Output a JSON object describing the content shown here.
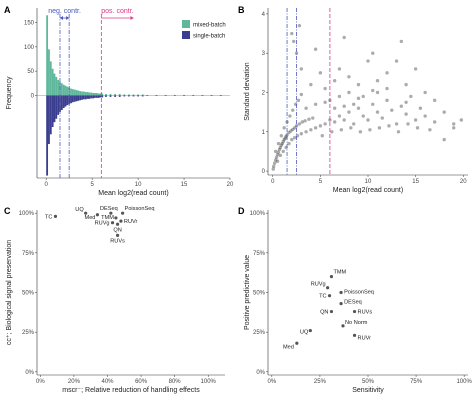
{
  "panels": {
    "A": "A",
    "B": "B",
    "C": "C",
    "D": "D"
  },
  "chart_data": [
    {
      "panel": "A",
      "type": "bar",
      "xlabel": "Mean log2(read count)",
      "ylabel": "Frequency",
      "xlim": [
        -1,
        20
      ],
      "ylim": [
        -170,
        180
      ],
      "yticks": [
        "0",
        "50",
        "100",
        "150"
      ],
      "xticks": [
        0,
        5,
        10,
        15,
        20
      ],
      "legend": [
        "mixed-batch",
        "single-batch"
      ],
      "legend_position": "top-right",
      "colors": {
        "mixed-batch": "#5fb89b",
        "single-batch": "#3b3d8e",
        "neg": "#4a56c0",
        "pos": "#e0358a"
      },
      "annotations": [
        {
          "text": "neg. contr.",
          "range": [
            1.5,
            2.5
          ],
          "color": "neg"
        },
        {
          "text": "pos. contr.",
          "range": [
            6.0,
            9.5
          ],
          "color": "pos"
        }
      ],
      "vlines": [
        {
          "x": 1.5,
          "color": "neg",
          "style": "dotdash"
        },
        {
          "x": 2.5,
          "color": "neg",
          "style": "dotdash"
        },
        {
          "x": 6.0,
          "color": "pos",
          "style": "dash"
        }
      ],
      "series": [
        {
          "name": "mixed-batch",
          "x": [
            0.1,
            0.3,
            0.5,
            0.7,
            0.9,
            1.1,
            1.3,
            1.5,
            1.7,
            1.9,
            2.1,
            2.3,
            2.5,
            2.7,
            2.9,
            3.1,
            3.3,
            3.5,
            3.7,
            3.9,
            4.1,
            4.3,
            4.5,
            4.7,
            4.9,
            5.1,
            5.3,
            5.5,
            5.7,
            5.9,
            6.1,
            6.5,
            7,
            7.5,
            8,
            8.5,
            9,
            9.5,
            10,
            10.5,
            11,
            12,
            13,
            14,
            15,
            16,
            17,
            18,
            19
          ],
          "values": [
            165,
            95,
            70,
            55,
            45,
            38,
            32,
            28,
            25,
            22,
            20,
            18,
            16,
            14,
            13,
            12,
            11,
            10,
            9,
            8,
            8,
            7,
            7,
            6,
            6,
            5,
            5,
            5,
            4,
            4,
            4,
            3,
            3,
            3,
            3,
            2,
            2,
            2,
            2,
            2,
            1,
            1,
            1,
            1,
            1,
            1,
            1,
            1,
            1
          ]
        },
        {
          "name": "single-batch",
          "x": [
            0.1,
            0.3,
            0.5,
            0.7,
            0.9,
            1.1,
            1.3,
            1.5,
            1.7,
            1.9,
            2.1,
            2.3,
            2.5,
            2.7,
            2.9,
            3.1,
            3.3,
            3.5,
            3.7,
            3.9,
            4.1,
            4.3,
            4.5,
            4.7,
            4.9,
            5.1,
            5.3,
            5.5,
            5.7,
            5.9,
            6.1,
            6.5,
            7,
            7.5,
            8,
            8.5,
            9,
            9.5,
            10,
            10.5,
            11,
            12,
            13,
            14,
            15,
            16,
            17,
            18,
            19
          ],
          "values": [
            165,
            100,
            80,
            65,
            55,
            48,
            40,
            34,
            30,
            26,
            23,
            20,
            18,
            16,
            14,
            13,
            12,
            11,
            10,
            9,
            8,
            8,
            7,
            7,
            6,
            6,
            5,
            5,
            5,
            4,
            4,
            3,
            3,
            3,
            3,
            2,
            2,
            2,
            2,
            2,
            1,
            1,
            1,
            1,
            1,
            1,
            1,
            1,
            1
          ]
        }
      ]
    },
    {
      "panel": "B",
      "type": "scatter",
      "xlabel": "Mean log2(read count)",
      "ylabel": "Standard deviation",
      "xlim": [
        -0.5,
        20.5
      ],
      "ylim": [
        -0.1,
        4.15
      ],
      "xticks": [
        0,
        5,
        10,
        15,
        20
      ],
      "yticks": [
        0,
        1,
        2,
        3,
        4
      ],
      "vlines": [
        {
          "x": 1.5,
          "color": "neg",
          "style": "dotdash"
        },
        {
          "x": 2.5,
          "color": "neg",
          "style": "dotdash"
        },
        {
          "x": 6.0,
          "color": "pos",
          "style": "dash"
        }
      ],
      "colors": {
        "neg": "#4a56c0",
        "pos": "#e0358a",
        "point": "#111111"
      },
      "points": [
        [
          0.05,
          0.05
        ],
        [
          0.1,
          0.12
        ],
        [
          0.2,
          0.2
        ],
        [
          0.3,
          0.28
        ],
        [
          0.4,
          0.35
        ],
        [
          0.5,
          0.42
        ],
        [
          0.6,
          0.48
        ],
        [
          0.7,
          0.55
        ],
        [
          0.8,
          0.6
        ],
        [
          0.9,
          0.66
        ],
        [
          1.0,
          0.7
        ],
        [
          1.1,
          0.75
        ],
        [
          1.2,
          0.8
        ],
        [
          1.3,
          0.84
        ],
        [
          1.4,
          0.88
        ],
        [
          1.5,
          0.92
        ],
        [
          1.7,
          0.98
        ],
        [
          1.9,
          1.02
        ],
        [
          2.1,
          1.06
        ],
        [
          2.3,
          1.1
        ],
        [
          2.5,
          1.15
        ],
        [
          2.8,
          1.2
        ],
        [
          3.1,
          1.25
        ],
        [
          3.4,
          1.28
        ],
        [
          3.8,
          1.32
        ],
        [
          4.2,
          1.35
        ],
        [
          0.3,
          0.5
        ],
        [
          0.6,
          0.7
        ],
        [
          0.9,
          0.9
        ],
        [
          1.2,
          1.1
        ],
        [
          1.5,
          1.25
        ],
        [
          1.8,
          1.4
        ],
        [
          2.1,
          1.55
        ],
        [
          2.4,
          1.7
        ],
        [
          2.7,
          1.8
        ],
        [
          3.0,
          1.95
        ],
        [
          0.5,
          0.25
        ],
        [
          0.8,
          0.4
        ],
        [
          1.1,
          0.5
        ],
        [
          1.4,
          0.6
        ],
        [
          1.7,
          0.7
        ],
        [
          2.0,
          0.8
        ],
        [
          2.3,
          0.85
        ],
        [
          2.6,
          0.9
        ],
        [
          3.0,
          0.95
        ],
        [
          3.5,
          1.0
        ],
        [
          4.0,
          1.05
        ],
        [
          4.5,
          1.1
        ],
        [
          5.0,
          1.15
        ],
        [
          5.5,
          1.2
        ],
        [
          6.0,
          1.3
        ],
        [
          6.5,
          1.25
        ],
        [
          7.0,
          1.4
        ],
        [
          7.5,
          1.3
        ],
        [
          8.0,
          1.5
        ],
        [
          8.5,
          1.2
        ],
        [
          9.0,
          1.6
        ],
        [
          9.5,
          1.4
        ],
        [
          10.0,
          1.3
        ],
        [
          10.5,
          1.7
        ],
        [
          11.0,
          1.5
        ],
        [
          11.5,
          1.35
        ],
        [
          12.0,
          1.8
        ],
        [
          12.5,
          1.55
        ],
        [
          13.0,
          1.2
        ],
        [
          13.5,
          1.65
        ],
        [
          14.0,
          1.45
        ],
        [
          14.5,
          1.9
        ],
        [
          15.0,
          1.3
        ],
        [
          15.5,
          1.6
        ],
        [
          16.0,
          1.4
        ],
        [
          17.0,
          1.25
        ],
        [
          18.0,
          1.5
        ],
        [
          19.0,
          1.2
        ],
        [
          19.8,
          1.3
        ],
        [
          4.0,
          2.2
        ],
        [
          5.0,
          2.5
        ],
        [
          5.5,
          2.1
        ],
        [
          6.5,
          2.3
        ],
        [
          7.0,
          2.6
        ],
        [
          8.0,
          2.4
        ],
        [
          9.0,
          2.2
        ],
        [
          10.0,
          2.8
        ],
        [
          11.0,
          2.3
        ],
        [
          12.0,
          2.5
        ],
        [
          13.0,
          2.8
        ],
        [
          14.0,
          2.2
        ],
        [
          15.0,
          2.6
        ],
        [
          16.0,
          2.0
        ],
        [
          17.0,
          1.8
        ],
        [
          3.0,
          2.6
        ],
        [
          2.5,
          3.0
        ],
        [
          2.2,
          3.3
        ],
        [
          2.0,
          3.5
        ],
        [
          2.8,
          3.7
        ],
        [
          4.5,
          3.1
        ],
        [
          7.5,
          3.4
        ],
        [
          10.5,
          3.0
        ],
        [
          13.5,
          3.3
        ],
        [
          6.0,
          1.8
        ],
        [
          7.0,
          1.9
        ],
        [
          8.0,
          2.0
        ],
        [
          9.0,
          1.85
        ],
        [
          11.0,
          2.0
        ],
        [
          12.0,
          2.1
        ],
        [
          14.0,
          1.75
        ],
        [
          18.0,
          0.8
        ],
        [
          19.0,
          1.1
        ],
        [
          16.5,
          1.05
        ],
        [
          3.5,
          1.6
        ],
        [
          4.5,
          1.7
        ],
        [
          5.5,
          1.75
        ],
        [
          6.5,
          1.6
        ],
        [
          7.5,
          1.65
        ],
        [
          8.5,
          1.7
        ],
        [
          9.5,
          1.9
        ],
        [
          10.5,
          2.05
        ],
        [
          5.2,
          0.9
        ],
        [
          6.2,
          1.0
        ],
        [
          7.2,
          1.05
        ],
        [
          8.2,
          1.1
        ],
        [
          9.2,
          1.0
        ],
        [
          10.2,
          1.05
        ],
        [
          11.2,
          1.1
        ],
        [
          12.2,
          1.15
        ],
        [
          13.2,
          1.0
        ],
        [
          14.2,
          1.2
        ],
        [
          15.2,
          1.1
        ]
      ]
    },
    {
      "panel": "C",
      "type": "scatter",
      "xlabel": "mscr⁻; Relative reduction of handling effects",
      "ylabel": "cc⁺; Biological signal preservation",
      "xlim": [
        -2,
        110
      ],
      "ylim": [
        -2,
        102
      ],
      "xticks": [
        "0%",
        "20%",
        "40%",
        "60%",
        "80%",
        "100%"
      ],
      "yticks": [
        "0%",
        "25%",
        "50%",
        "75%",
        "100%"
      ],
      "points": [
        {
          "label": "TC",
          "x": 9,
          "y": 98
        },
        {
          "label": "UQ",
          "x": 27,
          "y": 100
        },
        {
          "label": "Med",
          "x": 34,
          "y": 99
        },
        {
          "label": "DESeq",
          "x": 42,
          "y": 100
        },
        {
          "label": "PoissonSeq",
          "x": 49,
          "y": 100
        },
        {
          "label": "TMM",
          "x": 45,
          "y": 97
        },
        {
          "label": "RUVr",
          "x": 48,
          "y": 95
        },
        {
          "label": "RUVg",
          "x": 43,
          "y": 94
        },
        {
          "label": "QN",
          "x": 46,
          "y": 93
        },
        {
          "label": "RUVs",
          "x": 46,
          "y": 86
        }
      ]
    },
    {
      "panel": "D",
      "type": "scatter",
      "xlabel": "Sensitivity",
      "ylabel": "Positive predictive value",
      "xlim": [
        -2,
        102
      ],
      "ylim": [
        -2,
        102
      ],
      "xticks": [
        "0%",
        "25%",
        "50%",
        "75%",
        "100%"
      ],
      "yticks": [
        "0%",
        "25%",
        "50%",
        "75%",
        "100%"
      ],
      "points": [
        {
          "label": "TMM",
          "x": 31,
          "y": 60
        },
        {
          "label": "RUVg",
          "x": 29,
          "y": 53
        },
        {
          "label": "PoissonSeq",
          "x": 36,
          "y": 50
        },
        {
          "label": "TC",
          "x": 30,
          "y": 48
        },
        {
          "label": "DESeq",
          "x": 36,
          "y": 43
        },
        {
          "label": "QN",
          "x": 31,
          "y": 38
        },
        {
          "label": "RUVs",
          "x": 43,
          "y": 38
        },
        {
          "label": "No Norm",
          "x": 37,
          "y": 29
        },
        {
          "label": "UQ",
          "x": 20,
          "y": 26
        },
        {
          "label": "RUVr",
          "x": 43,
          "y": 23
        },
        {
          "label": "Med",
          "x": 13,
          "y": 18
        }
      ]
    }
  ]
}
